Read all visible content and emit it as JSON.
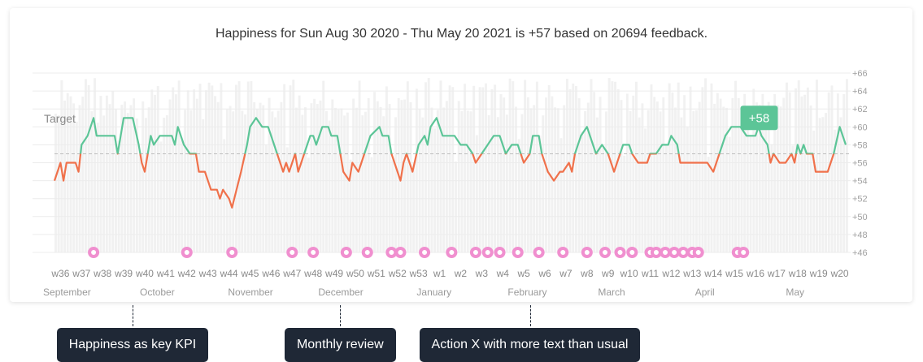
{
  "header": {
    "title": "Happiness for Sun Aug 30 2020 - Thu May 20 2021 is +57 based on 20694 feedback."
  },
  "colors": {
    "above_target": "#5cc597",
    "below_target": "#f0714b",
    "volume_bars": "#f1f1f1",
    "marker": "#f08fcf",
    "badge": "#5cc597",
    "callout": "#1f2836"
  },
  "chart_data": {
    "type": "line",
    "ylim": [
      46,
      66
    ],
    "y_ticks": [
      "+46",
      "+48",
      "+50",
      "+52",
      "+54",
      "+56",
      "+58",
      "+60",
      "+62",
      "+64",
      "+66"
    ],
    "target": {
      "label": "Target",
      "value": 57
    },
    "current_badge": "+58",
    "x_start": "2020-08-30",
    "x_end": "2021-05-20",
    "week_ticks": [
      {
        "label": "w36",
        "date": "2020-09-01"
      },
      {
        "label": "w37",
        "date": "2020-09-08"
      },
      {
        "label": "w38",
        "date": "2020-09-15"
      },
      {
        "label": "w39",
        "date": "2020-09-22"
      },
      {
        "label": "w40",
        "date": "2020-09-29"
      },
      {
        "label": "w41",
        "date": "2020-10-06"
      },
      {
        "label": "w42",
        "date": "2020-10-13"
      },
      {
        "label": "w43",
        "date": "2020-10-20"
      },
      {
        "label": "w44",
        "date": "2020-10-27"
      },
      {
        "label": "w45",
        "date": "2020-11-03"
      },
      {
        "label": "w46",
        "date": "2020-11-10"
      },
      {
        "label": "w47",
        "date": "2020-11-17"
      },
      {
        "label": "w48",
        "date": "2020-11-24"
      },
      {
        "label": "w49",
        "date": "2020-12-01"
      },
      {
        "label": "w50",
        "date": "2020-12-08"
      },
      {
        "label": "w51",
        "date": "2020-12-15"
      },
      {
        "label": "w52",
        "date": "2020-12-22"
      },
      {
        "label": "w53",
        "date": "2020-12-29"
      },
      {
        "label": "w1",
        "date": "2021-01-05"
      },
      {
        "label": "w2",
        "date": "2021-01-12"
      },
      {
        "label": "w3",
        "date": "2021-01-19"
      },
      {
        "label": "w4",
        "date": "2021-01-26"
      },
      {
        "label": "w5",
        "date": "2021-02-02"
      },
      {
        "label": "w6",
        "date": "2021-02-09"
      },
      {
        "label": "w7",
        "date": "2021-02-16"
      },
      {
        "label": "w8",
        "date": "2021-02-23"
      },
      {
        "label": "w9",
        "date": "2021-03-02"
      },
      {
        "label": "w10",
        "date": "2021-03-09"
      },
      {
        "label": "w11",
        "date": "2021-03-16"
      },
      {
        "label": "w12",
        "date": "2021-03-23"
      },
      {
        "label": "w13",
        "date": "2021-03-30"
      },
      {
        "label": "w14",
        "date": "2021-04-06"
      },
      {
        "label": "w15",
        "date": "2021-04-13"
      },
      {
        "label": "w16",
        "date": "2021-04-20"
      },
      {
        "label": "w17",
        "date": "2021-04-27"
      },
      {
        "label": "w18",
        "date": "2021-05-04"
      },
      {
        "label": "w19",
        "date": "2021-05-11"
      },
      {
        "label": "w20",
        "date": "2021-05-18"
      }
    ],
    "month_ticks": [
      {
        "label": "September",
        "date": "2020-09-01"
      },
      {
        "label": "October",
        "date": "2020-10-01"
      },
      {
        "label": "November",
        "date": "2020-11-01"
      },
      {
        "label": "December",
        "date": "2020-12-01"
      },
      {
        "label": "January",
        "date": "2021-01-01"
      },
      {
        "label": "February",
        "date": "2021-02-01"
      },
      {
        "label": "March",
        "date": "2021-03-01"
      },
      {
        "label": "April",
        "date": "2021-04-01"
      },
      {
        "label": "May",
        "date": "2021-05-01"
      }
    ],
    "series": [
      {
        "points": [
          [
            "2020-08-30",
            54
          ],
          [
            "2020-09-01",
            56
          ],
          [
            "2020-09-02",
            54
          ],
          [
            "2020-09-03",
            56
          ],
          [
            "2020-09-06",
            56
          ],
          [
            "2020-09-07",
            55
          ],
          [
            "2020-09-08",
            58
          ],
          [
            "2020-09-10",
            59
          ],
          [
            "2020-09-12",
            61
          ],
          [
            "2020-09-13",
            59
          ],
          [
            "2020-09-19",
            59
          ],
          [
            "2020-09-20",
            57
          ],
          [
            "2020-09-21",
            59
          ],
          [
            "2020-09-22",
            61
          ],
          [
            "2020-09-25",
            61
          ],
          [
            "2020-09-27",
            58
          ],
          [
            "2020-09-28",
            56
          ],
          [
            "2020-09-29",
            55
          ],
          [
            "2020-09-30",
            57
          ],
          [
            "2020-10-01",
            59
          ],
          [
            "2020-10-02",
            58
          ],
          [
            "2020-10-04",
            59
          ],
          [
            "2020-10-08",
            59
          ],
          [
            "2020-10-09",
            58
          ],
          [
            "2020-10-10",
            60
          ],
          [
            "2020-10-12",
            58
          ],
          [
            "2020-10-14",
            57
          ],
          [
            "2020-10-16",
            57
          ],
          [
            "2020-10-17",
            55
          ],
          [
            "2020-10-19",
            55
          ],
          [
            "2020-10-21",
            53
          ],
          [
            "2020-10-23",
            53
          ],
          [
            "2020-10-24",
            52
          ],
          [
            "2020-10-25",
            53
          ],
          [
            "2020-10-27",
            52
          ],
          [
            "2020-10-28",
            51
          ],
          [
            "2020-10-31",
            55
          ],
          [
            "2020-11-02",
            58
          ],
          [
            "2020-11-03",
            60
          ],
          [
            "2020-11-05",
            61
          ],
          [
            "2020-11-07",
            60
          ],
          [
            "2020-11-09",
            60
          ],
          [
            "2020-11-11",
            58
          ],
          [
            "2020-11-13",
            56
          ],
          [
            "2020-11-14",
            55
          ],
          [
            "2020-11-15",
            56
          ],
          [
            "2020-11-16",
            55
          ],
          [
            "2020-11-18",
            57
          ],
          [
            "2020-11-19",
            55
          ],
          [
            "2020-11-21",
            57
          ],
          [
            "2020-11-23",
            59
          ],
          [
            "2020-11-24",
            59
          ],
          [
            "2020-11-25",
            58
          ],
          [
            "2020-11-27",
            60
          ],
          [
            "2020-11-29",
            60
          ],
          [
            "2020-11-30",
            59
          ],
          [
            "2020-12-02",
            59
          ],
          [
            "2020-12-03",
            57
          ],
          [
            "2020-12-04",
            55
          ],
          [
            "2020-12-06",
            54
          ],
          [
            "2020-12-07",
            56
          ],
          [
            "2020-12-09",
            55
          ],
          [
            "2020-12-11",
            57
          ],
          [
            "2020-12-13",
            59
          ],
          [
            "2020-12-16",
            60
          ],
          [
            "2020-12-17",
            59
          ],
          [
            "2020-12-19",
            59
          ],
          [
            "2020-12-20",
            57
          ],
          [
            "2020-12-22",
            55
          ],
          [
            "2020-12-23",
            54
          ],
          [
            "2020-12-24",
            56
          ],
          [
            "2020-12-25",
            57
          ],
          [
            "2020-12-27",
            55
          ],
          [
            "2020-12-29",
            58
          ],
          [
            "2020-12-31",
            59
          ],
          [
            "2021-01-01",
            58
          ],
          [
            "2021-01-02",
            60
          ],
          [
            "2021-01-04",
            61
          ],
          [
            "2021-01-06",
            59
          ],
          [
            "2021-01-08",
            59
          ],
          [
            "2021-01-10",
            59
          ],
          [
            "2021-01-12",
            58
          ],
          [
            "2021-01-14",
            58
          ],
          [
            "2021-01-16",
            57
          ],
          [
            "2021-01-17",
            56
          ],
          [
            "2021-01-19",
            57
          ],
          [
            "2021-01-21",
            58
          ],
          [
            "2021-01-23",
            59
          ],
          [
            "2021-01-25",
            59
          ],
          [
            "2021-01-27",
            57
          ],
          [
            "2021-01-29",
            58
          ],
          [
            "2021-01-31",
            58
          ],
          [
            "2021-02-02",
            56
          ],
          [
            "2021-02-04",
            57
          ],
          [
            "2021-02-05",
            59
          ],
          [
            "2021-02-07",
            59
          ],
          [
            "2021-02-08",
            57
          ],
          [
            "2021-02-10",
            55
          ],
          [
            "2021-02-12",
            54
          ],
          [
            "2021-02-14",
            55
          ],
          [
            "2021-02-15",
            55
          ],
          [
            "2021-02-17",
            56
          ],
          [
            "2021-02-18",
            55
          ],
          [
            "2021-02-19",
            57
          ],
          [
            "2021-02-21",
            59
          ],
          [
            "2021-02-23",
            60
          ],
          [
            "2021-02-25",
            58
          ],
          [
            "2021-02-26",
            57
          ],
          [
            "2021-02-28",
            58
          ],
          [
            "2021-03-02",
            57
          ],
          [
            "2021-03-04",
            55
          ],
          [
            "2021-03-05",
            56
          ],
          [
            "2021-03-07",
            58
          ],
          [
            "2021-03-09",
            58
          ],
          [
            "2021-03-10",
            57
          ],
          [
            "2021-03-12",
            56
          ],
          [
            "2021-03-15",
            56
          ],
          [
            "2021-03-16",
            57
          ],
          [
            "2021-03-18",
            57
          ],
          [
            "2021-03-20",
            58
          ],
          [
            "2021-03-22",
            58
          ],
          [
            "2021-03-23",
            59
          ],
          [
            "2021-03-25",
            58
          ],
          [
            "2021-03-26",
            56
          ],
          [
            "2021-03-28",
            56
          ],
          [
            "2021-03-30",
            56
          ],
          [
            "2021-04-01",
            56
          ],
          [
            "2021-04-04",
            56
          ],
          [
            "2021-04-06",
            55
          ],
          [
            "2021-04-08",
            57
          ],
          [
            "2021-04-10",
            59
          ],
          [
            "2021-04-12",
            60
          ],
          [
            "2021-04-15",
            60
          ],
          [
            "2021-04-17",
            59
          ],
          [
            "2021-04-20",
            59
          ],
          [
            "2021-04-21",
            60
          ],
          [
            "2021-04-22",
            59
          ],
          [
            "2021-04-24",
            58
          ],
          [
            "2021-04-25",
            56
          ],
          [
            "2021-04-26",
            57
          ],
          [
            "2021-04-28",
            56
          ],
          [
            "2021-04-30",
            56
          ],
          [
            "2021-05-02",
            57
          ],
          [
            "2021-05-03",
            56
          ],
          [
            "2021-05-04",
            58
          ],
          [
            "2021-05-05",
            57
          ],
          [
            "2021-05-06",
            58
          ],
          [
            "2021-05-07",
            57
          ],
          [
            "2021-05-09",
            57
          ],
          [
            "2021-05-10",
            55
          ],
          [
            "2021-05-14",
            55
          ],
          [
            "2021-05-16",
            57
          ],
          [
            "2021-05-18",
            60
          ],
          [
            "2021-05-20",
            58
          ]
        ]
      }
    ],
    "event_markers": [
      "2020-09-12",
      "2020-10-13",
      "2020-10-28",
      "2020-11-17",
      "2020-11-24",
      "2020-12-05",
      "2020-12-12",
      "2020-12-20",
      "2020-12-23",
      "2020-12-31",
      "2021-01-09",
      "2021-01-17",
      "2021-01-21",
      "2021-01-25",
      "2021-01-31",
      "2021-02-07",
      "2021-02-15",
      "2021-02-23",
      "2021-03-01",
      "2021-03-06",
      "2021-03-10",
      "2021-03-16",
      "2021-03-18",
      "2021-03-21",
      "2021-03-24",
      "2021-03-27",
      "2021-03-30",
      "2021-04-01",
      "2021-04-14",
      "2021-04-16"
    ]
  },
  "callouts": [
    {
      "label": "Happiness as key KPI",
      "date": "2020-09-25"
    },
    {
      "label": "Monthly review",
      "date": "2020-12-03"
    },
    {
      "label": "Action X with more text than usual",
      "date": "2021-02-04"
    }
  ]
}
